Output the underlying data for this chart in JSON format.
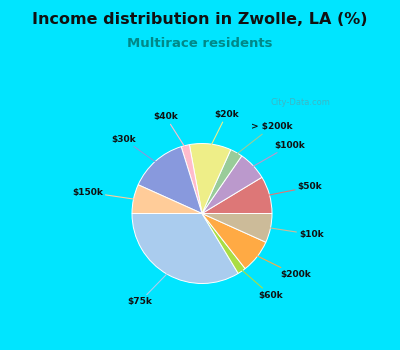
{
  "title": "Income distribution in Zwolle, LA (%)",
  "subtitle": "Multirace residents",
  "labels": [
    "$75k",
    "$60k",
    "$200k",
    "$10k",
    "$50k",
    "$100k",
    "> $200k",
    "$20k",
    "$40k",
    "$30k",
    "$150k"
  ],
  "values": [
    35,
    2,
    8,
    7,
    9,
    7,
    3,
    10,
    2,
    14,
    7
  ],
  "colors": [
    "#aaccee",
    "#aadd44",
    "#ffaa44",
    "#ccbb99",
    "#dd7777",
    "#bb99cc",
    "#99cc99",
    "#eeee88",
    "#ffbbcc",
    "#8899dd",
    "#ffcc99"
  ],
  "bg_top_color": "#00e5ff",
  "bg_chart_color_tl": "#d8f0e8",
  "bg_chart_color_br": "#e8f8f8",
  "title_color": "#111111",
  "subtitle_color": "#008888",
  "startangle": 180,
  "watermark": "City-Data.com"
}
